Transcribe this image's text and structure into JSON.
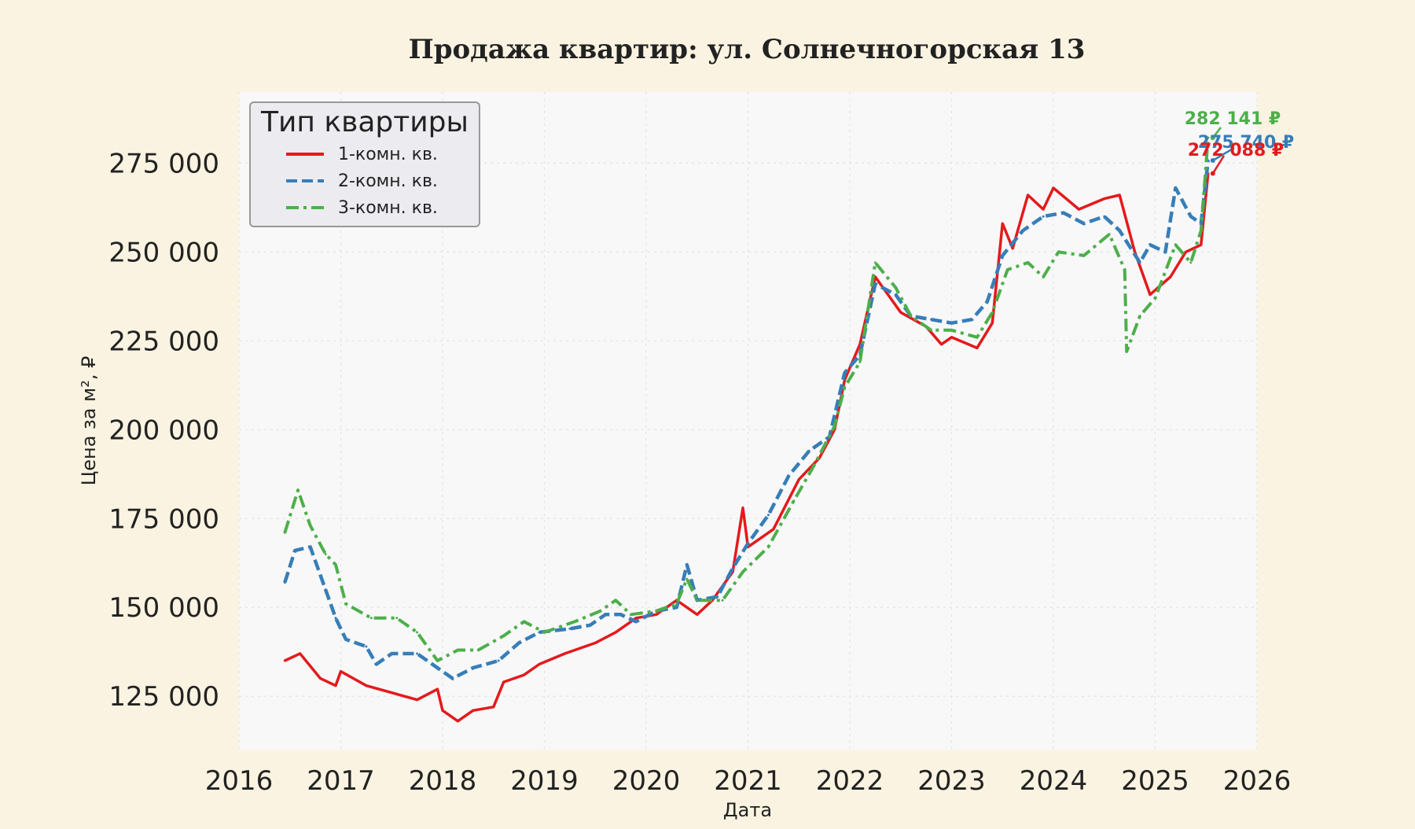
{
  "chart_data": {
    "type": "line",
    "title": "Продажа квартир: ул. Солнечногорская 13",
    "xlabel": "Дата",
    "ylabel": "Цена за м², ₽",
    "xlim": [
      2016.0,
      2026.0
    ],
    "ylim": [
      110000,
      295000
    ],
    "x_ticks": [
      2016,
      2017,
      2018,
      2019,
      2020,
      2021,
      2022,
      2023,
      2024,
      2025,
      2026
    ],
    "x_tick_labels": [
      "2016",
      "2017",
      "2018",
      "2019",
      "2020",
      "2021",
      "2022",
      "2023",
      "2024",
      "2025",
      "2026"
    ],
    "y_ticks": [
      125000,
      150000,
      175000,
      200000,
      225000,
      250000,
      275000
    ],
    "y_tick_labels": [
      "125 000",
      "150 000",
      "175 000",
      "200 000",
      "225 000",
      "250 000",
      "275 000"
    ],
    "grid": true,
    "legend": {
      "title": "Тип квартиры",
      "position": "top-left"
    },
    "series": [
      {
        "name": "1-комн. кв.",
        "color": "#e41a1c",
        "style": "solid",
        "points": [
          [
            2016.45,
            135000
          ],
          [
            2016.6,
            137000
          ],
          [
            2016.8,
            130000
          ],
          [
            2016.95,
            128000
          ],
          [
            2017.0,
            132000
          ],
          [
            2017.25,
            128000
          ],
          [
            2017.5,
            126000
          ],
          [
            2017.75,
            124000
          ],
          [
            2017.95,
            127000
          ],
          [
            2018.0,
            121000
          ],
          [
            2018.15,
            118000
          ],
          [
            2018.3,
            121000
          ],
          [
            2018.5,
            122000
          ],
          [
            2018.6,
            129000
          ],
          [
            2018.8,
            131000
          ],
          [
            2018.95,
            134000
          ],
          [
            2019.2,
            137000
          ],
          [
            2019.5,
            140000
          ],
          [
            2019.7,
            143000
          ],
          [
            2019.9,
            147000
          ],
          [
            2020.1,
            148000
          ],
          [
            2020.3,
            152000
          ],
          [
            2020.5,
            148000
          ],
          [
            2020.65,
            152000
          ],
          [
            2020.85,
            160000
          ],
          [
            2020.95,
            178000
          ],
          [
            2021.0,
            167000
          ],
          [
            2021.25,
            172000
          ],
          [
            2021.5,
            186000
          ],
          [
            2021.7,
            192000
          ],
          [
            2021.85,
            200000
          ],
          [
            2021.95,
            214000
          ],
          [
            2022.1,
            224000
          ],
          [
            2022.25,
            243000
          ],
          [
            2022.5,
            233000
          ],
          [
            2022.75,
            229000
          ],
          [
            2022.9,
            224000
          ],
          [
            2023.0,
            226000
          ],
          [
            2023.25,
            223000
          ],
          [
            2023.4,
            230000
          ],
          [
            2023.5,
            258000
          ],
          [
            2023.6,
            251000
          ],
          [
            2023.75,
            266000
          ],
          [
            2023.9,
            262000
          ],
          [
            2024.0,
            268000
          ],
          [
            2024.25,
            262000
          ],
          [
            2024.5,
            265000
          ],
          [
            2024.65,
            266000
          ],
          [
            2024.8,
            250000
          ],
          [
            2024.95,
            238000
          ],
          [
            2025.15,
            243000
          ],
          [
            2025.3,
            250000
          ],
          [
            2025.45,
            252000
          ],
          [
            2025.52,
            272088
          ]
        ]
      },
      {
        "name": "2-комн. кв.",
        "color": "#377eb8",
        "style": "dashed-square",
        "points": [
          [
            2016.45,
            157000
          ],
          [
            2016.55,
            166000
          ],
          [
            2016.7,
            167000
          ],
          [
            2016.85,
            155000
          ],
          [
            2016.95,
            147000
          ],
          [
            2017.05,
            141000
          ],
          [
            2017.25,
            139000
          ],
          [
            2017.35,
            134000
          ],
          [
            2017.5,
            137000
          ],
          [
            2017.75,
            137000
          ],
          [
            2017.95,
            133000
          ],
          [
            2018.1,
            130000
          ],
          [
            2018.3,
            133000
          ],
          [
            2018.55,
            135000
          ],
          [
            2018.75,
            140000
          ],
          [
            2018.95,
            143000
          ],
          [
            2019.25,
            144000
          ],
          [
            2019.45,
            145000
          ],
          [
            2019.6,
            148000
          ],
          [
            2019.75,
            148000
          ],
          [
            2019.9,
            146000
          ],
          [
            2020.1,
            149000
          ],
          [
            2020.3,
            150000
          ],
          [
            2020.4,
            162000
          ],
          [
            2020.5,
            152000
          ],
          [
            2020.7,
            153000
          ],
          [
            2020.85,
            161000
          ],
          [
            2021.0,
            168000
          ],
          [
            2021.2,
            176000
          ],
          [
            2021.4,
            187000
          ],
          [
            2021.6,
            194000
          ],
          [
            2021.8,
            198000
          ],
          [
            2021.95,
            216000
          ],
          [
            2022.1,
            221000
          ],
          [
            2022.25,
            241000
          ],
          [
            2022.45,
            238000
          ],
          [
            2022.6,
            232000
          ],
          [
            2022.8,
            231000
          ],
          [
            2023.0,
            230000
          ],
          [
            2023.2,
            231000
          ],
          [
            2023.35,
            236000
          ],
          [
            2023.5,
            249000
          ],
          [
            2023.7,
            256000
          ],
          [
            2023.9,
            260000
          ],
          [
            2024.1,
            261000
          ],
          [
            2024.3,
            258000
          ],
          [
            2024.5,
            260000
          ],
          [
            2024.65,
            256000
          ],
          [
            2024.85,
            247000
          ],
          [
            2024.95,
            252000
          ],
          [
            2025.1,
            250000
          ],
          [
            2025.2,
            268000
          ],
          [
            2025.35,
            260000
          ],
          [
            2025.45,
            258000
          ],
          [
            2025.52,
            275740
          ]
        ]
      },
      {
        "name": "3-комн. кв.",
        "color": "#4daf4a",
        "style": "dashdot",
        "points": [
          [
            2016.45,
            171000
          ],
          [
            2016.58,
            183000
          ],
          [
            2016.7,
            173000
          ],
          [
            2016.85,
            165000
          ],
          [
            2016.95,
            162000
          ],
          [
            2017.05,
            151000
          ],
          [
            2017.3,
            147000
          ],
          [
            2017.55,
            147000
          ],
          [
            2017.75,
            143000
          ],
          [
            2017.95,
            135000
          ],
          [
            2018.15,
            138000
          ],
          [
            2018.35,
            138000
          ],
          [
            2018.6,
            142000
          ],
          [
            2018.8,
            146000
          ],
          [
            2019.0,
            143000
          ],
          [
            2019.3,
            146000
          ],
          [
            2019.55,
            149000
          ],
          [
            2019.7,
            152000
          ],
          [
            2019.85,
            148000
          ],
          [
            2020.1,
            149000
          ],
          [
            2020.3,
            151000
          ],
          [
            2020.4,
            158000
          ],
          [
            2020.5,
            152000
          ],
          [
            2020.75,
            152000
          ],
          [
            2020.95,
            160000
          ],
          [
            2021.2,
            167000
          ],
          [
            2021.45,
            180000
          ],
          [
            2021.65,
            190000
          ],
          [
            2021.85,
            201000
          ],
          [
            2021.95,
            212000
          ],
          [
            2022.1,
            219000
          ],
          [
            2022.25,
            247000
          ],
          [
            2022.45,
            240000
          ],
          [
            2022.6,
            232000
          ],
          [
            2022.8,
            228000
          ],
          [
            2023.0,
            228000
          ],
          [
            2023.25,
            226000
          ],
          [
            2023.4,
            233000
          ],
          [
            2023.55,
            245000
          ],
          [
            2023.75,
            247000
          ],
          [
            2023.9,
            243000
          ],
          [
            2024.05,
            250000
          ],
          [
            2024.3,
            249000
          ],
          [
            2024.55,
            255000
          ],
          [
            2024.7,
            245000
          ],
          [
            2024.72,
            222000
          ],
          [
            2024.85,
            232000
          ],
          [
            2025.0,
            237000
          ],
          [
            2025.2,
            252000
          ],
          [
            2025.35,
            247000
          ],
          [
            2025.45,
            256000
          ],
          [
            2025.52,
            282141
          ]
        ]
      }
    ],
    "annotations": [
      {
        "series": "3-комн. кв.",
        "text": "282 141 ₽",
        "x": 2025.52,
        "y": 282141,
        "color": "#4daf4a"
      },
      {
        "series": "2-комн. кв.",
        "text": "275 740 ₽",
        "x": 2025.52,
        "y": 275740,
        "color": "#377eb8"
      },
      {
        "series": "1-комн. кв.",
        "text": "272 088 ₽",
        "x": 2025.52,
        "y": 272088,
        "color": "#e41a1c"
      }
    ]
  }
}
